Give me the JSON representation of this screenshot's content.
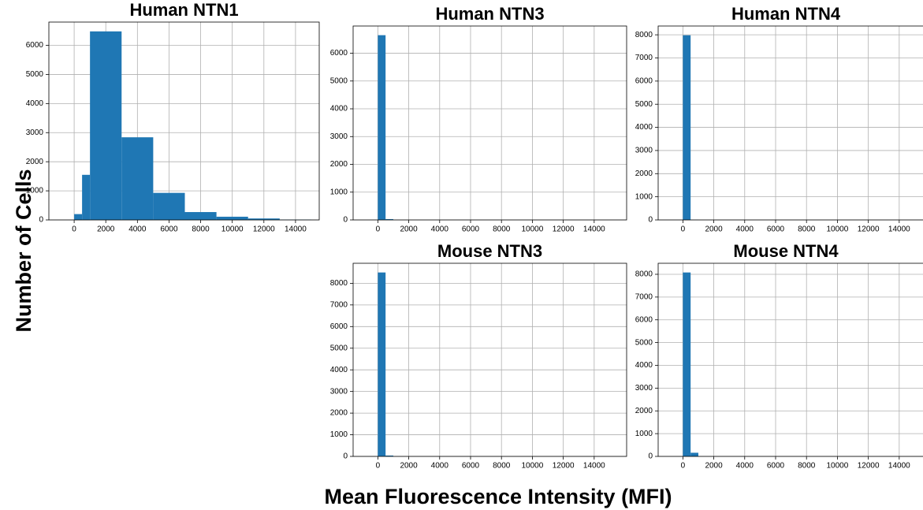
{
  "ylabel": "Number of Cells",
  "xlabel": "Mean Fluorescence Intensity (MFI)",
  "chart_data": [
    {
      "type": "histogram",
      "title": "Human NTN1",
      "color": "#1f77b4",
      "grid": true,
      "bins": [
        0,
        500,
        1000,
        3000,
        5000,
        7000,
        9000,
        11000,
        13000,
        15000
      ],
      "values": [
        200,
        1550,
        6480,
        2840,
        930,
        270,
        110,
        50,
        10
      ],
      "xlim": [
        -1600,
        15500
      ],
      "ylim": [
        0,
        6800
      ],
      "xticks": [
        0,
        2000,
        4000,
        6000,
        8000,
        10000,
        12000,
        14000
      ],
      "yticks": [
        0,
        1000,
        2000,
        3000,
        4000,
        5000,
        6000
      ]
    },
    {
      "type": "histogram",
      "title": "Human NTN3",
      "color": "#1f77b4",
      "grid": true,
      "bins": [
        0,
        500,
        1000,
        1500,
        2000,
        2500,
        3000,
        3500,
        4000,
        4500,
        5000,
        5500,
        6000,
        6500,
        7000,
        7500,
        8000,
        8500,
        9000,
        9500,
        10000,
        10500,
        11000,
        11500,
        12000,
        12500,
        13000,
        13500,
        14000,
        14500,
        15000
      ],
      "values": [
        6650,
        30,
        0,
        0,
        0,
        0,
        0,
        0,
        0,
        0,
        0,
        0,
        0,
        0,
        0,
        0,
        0,
        0,
        0,
        0,
        0,
        0,
        0,
        0,
        0,
        0,
        0,
        0,
        0,
        0
      ],
      "xlim": [
        -1600,
        16100
      ],
      "ylim": [
        0,
        6980
      ],
      "xticks": [
        0,
        2000,
        4000,
        6000,
        8000,
        10000,
        12000,
        14000
      ],
      "yticks": [
        0,
        1000,
        2000,
        3000,
        4000,
        5000,
        6000
      ]
    },
    {
      "type": "histogram",
      "title": "Human NTN4",
      "color": "#1f77b4",
      "grid": true,
      "bins": [
        0,
        500,
        1000,
        1500,
        2000,
        2500,
        3000,
        3500,
        4000,
        4500,
        5000,
        5500,
        6000,
        6500,
        7000,
        7500,
        8000,
        8500,
        9000,
        9500,
        10000,
        10500,
        11000,
        11500,
        12000,
        12500,
        13000,
        13500,
        14000,
        14500,
        15000
      ],
      "values": [
        7980,
        5,
        0,
        0,
        0,
        0,
        0,
        0,
        0,
        0,
        0,
        0,
        0,
        0,
        0,
        0,
        0,
        0,
        0,
        0,
        0,
        0,
        0,
        0,
        0,
        0,
        0,
        0,
        0,
        0
      ],
      "xlim": [
        -1600,
        16100
      ],
      "ylim": [
        0,
        8380
      ],
      "xticks": [
        0,
        2000,
        4000,
        6000,
        8000,
        10000,
        12000,
        14000
      ],
      "yticks": [
        0,
        1000,
        2000,
        3000,
        4000,
        5000,
        6000,
        7000,
        8000
      ]
    },
    {
      "type": "histogram",
      "title": "Mouse NTN3",
      "color": "#1f77b4",
      "grid": true,
      "bins": [
        0,
        500,
        1000,
        1500,
        2000,
        2500,
        3000,
        3500,
        4000,
        4500,
        5000,
        5500,
        6000,
        6500,
        7000,
        7500,
        8000,
        8500,
        9000,
        9500,
        10000,
        10500,
        11000,
        11500,
        12000,
        12500,
        13000,
        13500,
        14000,
        14500,
        15000
      ],
      "values": [
        8500,
        40,
        0,
        0,
        0,
        0,
        0,
        0,
        0,
        0,
        0,
        0,
        0,
        0,
        0,
        0,
        0,
        0,
        0,
        0,
        0,
        0,
        0,
        0,
        0,
        0,
        0,
        0,
        0,
        0
      ],
      "xlim": [
        -1600,
        16100
      ],
      "ylim": [
        0,
        8925
      ],
      "xticks": [
        0,
        2000,
        4000,
        6000,
        8000,
        10000,
        12000,
        14000
      ],
      "yticks": [
        0,
        1000,
        2000,
        3000,
        4000,
        5000,
        6000,
        7000,
        8000
      ]
    },
    {
      "type": "histogram",
      "title": "Mouse NTN4",
      "color": "#1f77b4",
      "grid": true,
      "bins": [
        0,
        500,
        1000,
        1500,
        2000,
        2500,
        3000,
        3500,
        4000,
        4500,
        5000,
        5500,
        6000,
        6500,
        7000,
        7500,
        8000,
        8500,
        9000,
        9500,
        10000,
        10500,
        11000,
        11500,
        12000,
        12500,
        13000,
        13500,
        14000,
        14500,
        15000
      ],
      "values": [
        8080,
        160,
        0,
        0,
        0,
        0,
        0,
        0,
        0,
        0,
        0,
        0,
        0,
        0,
        0,
        0,
        0,
        0,
        0,
        0,
        0,
        0,
        0,
        0,
        0,
        0,
        0,
        0,
        0,
        0
      ],
      "xlim": [
        -1600,
        16100
      ],
      "ylim": [
        0,
        8484
      ],
      "xticks": [
        0,
        2000,
        4000,
        6000,
        8000,
        10000,
        12000,
        14000
      ],
      "yticks": [
        0,
        1000,
        2000,
        3000,
        4000,
        5000,
        6000,
        7000,
        8000
      ]
    }
  ]
}
